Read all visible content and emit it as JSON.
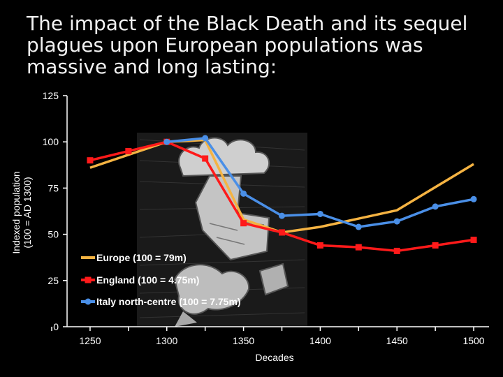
{
  "title": "The impact of the Black Death and its sequel plagues upon European populations was massive and long lasting:",
  "chart_data": {
    "type": "line",
    "xlabel": "Decades",
    "ylabel_lines": [
      "Indexed population",
      "(100 = AD 1300)"
    ],
    "xlim": [
      1235,
      1510
    ],
    "ylim": [
      0,
      125
    ],
    "x_ticks": [
      1250,
      1300,
      1350,
      1400,
      1450,
      1500
    ],
    "y_ticks": [
      0,
      25,
      50,
      75,
      100,
      125
    ],
    "grid": false,
    "legend_position": "lower-center",
    "series": [
      {
        "name": "Europe (100 = 79m)",
        "color": "#f5b342",
        "marker": "none",
        "x": [
          1250,
          1300,
          1325,
          1350,
          1375,
          1400,
          1450,
          1500
        ],
        "y": [
          86,
          100,
          101,
          58,
          51,
          54,
          63,
          88
        ]
      },
      {
        "name": "England (100 = 4.75m)",
        "color": "#ff1a1a",
        "marker": "square",
        "x": [
          1250,
          1275,
          1300,
          1325,
          1350,
          1375,
          1400,
          1425,
          1450,
          1475,
          1500
        ],
        "y": [
          90,
          95,
          100,
          91,
          56,
          51,
          44,
          43,
          41,
          44,
          47
        ]
      },
      {
        "name": "Italy north-centre (100 = 7.75m)",
        "color": "#4a8fe7",
        "marker": "circle",
        "x": [
          1300,
          1325,
          1350,
          1375,
          1400,
          1425,
          1450,
          1475,
          1500
        ],
        "y": [
          100,
          102,
          72,
          60,
          61,
          54,
          57,
          65,
          69
        ]
      }
    ]
  },
  "illustration": {
    "name": "plague-woodcut-illustration"
  }
}
